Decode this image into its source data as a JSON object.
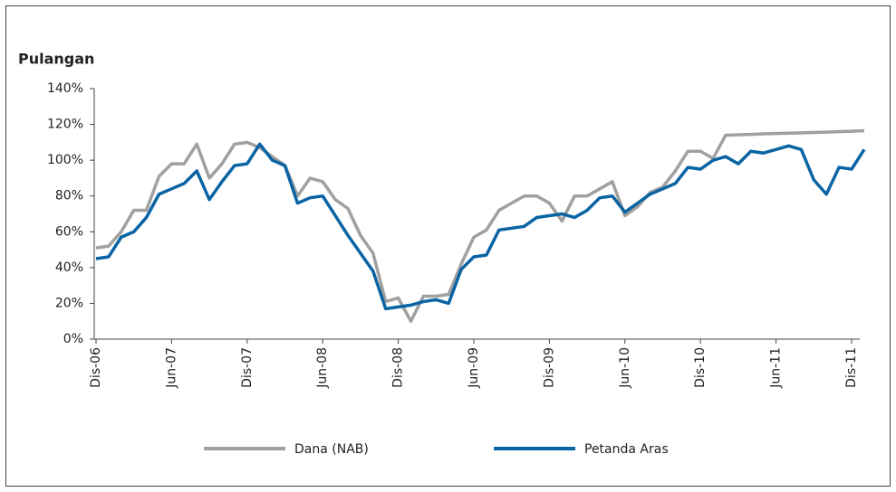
{
  "chart_data": {
    "type": "line",
    "title": "Pulangan",
    "categories": [
      "Dis-06",
      null,
      null,
      null,
      null,
      null,
      "Jun-07",
      null,
      null,
      null,
      null,
      null,
      "Dis-07",
      null,
      null,
      null,
      null,
      null,
      "Jun-08",
      null,
      null,
      null,
      null,
      null,
      "Dis-08",
      null,
      null,
      null,
      null,
      null,
      "Jun-09",
      null,
      null,
      null,
      null,
      null,
      "Dis-09",
      null,
      null,
      null,
      null,
      null,
      "Jun-10",
      null,
      null,
      null,
      null,
      null,
      "Dis-10",
      null,
      null,
      null,
      null,
      null,
      "Jun-11",
      null,
      null,
      null,
      null,
      null,
      "Dis-11",
      null
    ],
    "series": [
      {
        "name": "Dana (NAB)",
        "color": "#a0a0a0",
        "values": [
          51,
          52,
          60,
          72,
          72,
          91,
          98,
          98,
          109,
          90,
          98,
          109,
          110,
          107,
          102,
          97,
          80,
          90,
          88,
          78,
          73,
          58,
          48,
          21,
          23,
          10,
          24,
          24,
          25,
          42,
          57,
          61,
          72,
          76,
          80,
          80,
          76,
          66,
          80,
          80,
          84,
          88,
          69,
          74,
          82,
          85,
          94,
          105,
          105,
          101,
          114,
          114.2,
          114.4,
          114.7,
          114.9,
          115.1,
          115.3,
          115.5,
          115.7,
          116,
          116.2,
          116.5
        ]
      },
      {
        "name": "Petanda Aras",
        "color": "#0a64a4",
        "values": [
          45,
          46,
          57,
          60,
          68,
          81,
          84,
          87,
          94,
          78,
          88,
          97,
          98,
          109,
          100,
          97,
          76,
          79,
          80,
          69,
          58,
          48,
          38,
          17,
          18,
          19,
          21,
          22,
          20,
          39,
          46,
          47,
          61,
          62,
          63,
          68,
          69,
          70,
          68,
          72,
          79,
          80,
          71,
          76,
          81,
          84,
          87,
          96,
          95,
          100,
          102,
          98,
          105,
          104,
          106,
          108,
          106,
          89,
          81,
          96,
          95,
          106
        ]
      }
    ],
    "ylim": [
      0,
      140
    ],
    "yticks": [
      {
        "value": 0,
        "label": "0%"
      },
      {
        "value": 20,
        "label": "20%"
      },
      {
        "value": 40,
        "label": "40%"
      },
      {
        "value": 60,
        "label": "60%"
      },
      {
        "value": 80,
        "label": "80%"
      },
      {
        "value": 100,
        "label": "100%"
      },
      {
        "value": 120,
        "label": "120%"
      },
      {
        "value": 140,
        "label": "140%"
      }
    ]
  }
}
